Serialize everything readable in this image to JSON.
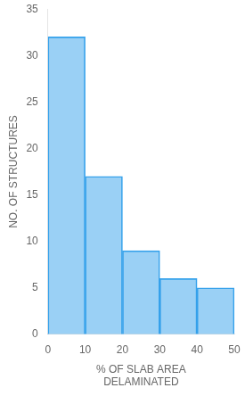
{
  "chart_data": {
    "type": "histogram",
    "bins": [
      0,
      10,
      20,
      30,
      40,
      50
    ],
    "values": [
      32,
      17,
      9,
      6,
      5
    ],
    "xlabel": [
      "% OF SLAB AREA",
      "DELAMINATED"
    ],
    "ylabel": "NO. OF STRUCTURES",
    "xlim": [
      0,
      50
    ],
    "xticks": [
      0,
      10,
      20,
      30,
      40,
      50
    ],
    "ylim": [
      0,
      35
    ],
    "yticks": [
      0,
      5,
      10,
      15,
      20,
      25,
      30,
      35
    ],
    "grid": false
  }
}
